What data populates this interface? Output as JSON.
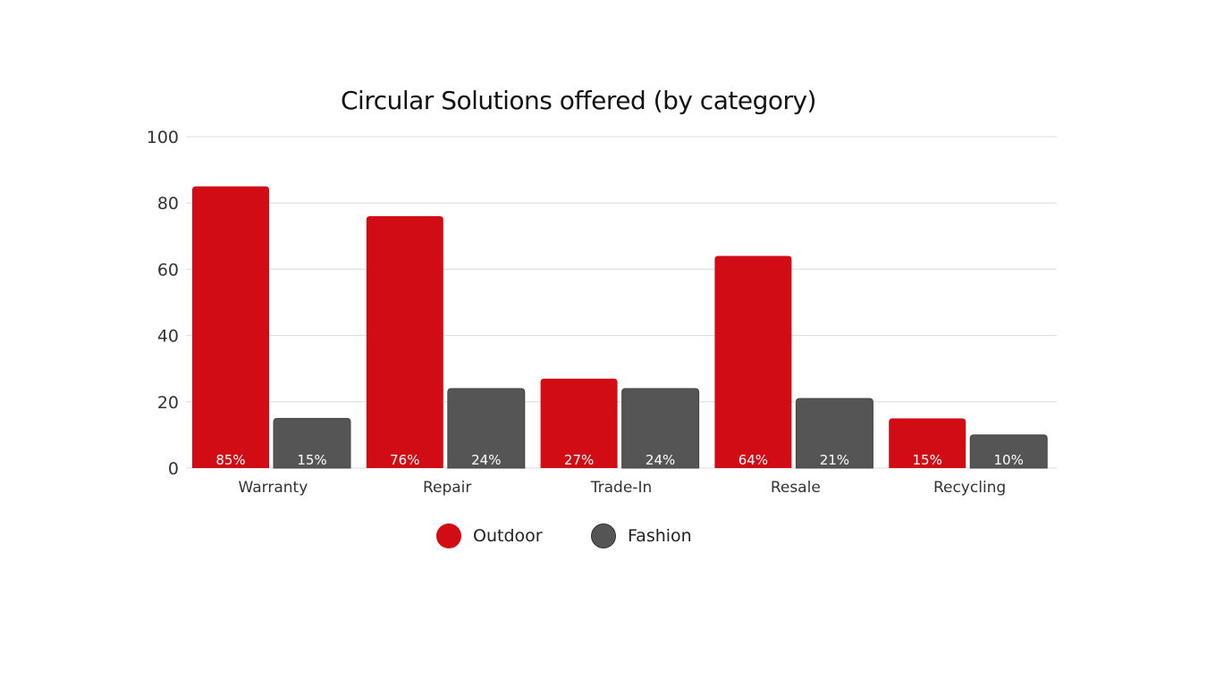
{
  "chart_data": {
    "type": "bar",
    "title": "Circular Solutions offered (by category)",
    "categories": [
      "Warranty",
      "Repair",
      "Trade-In",
      "Resale",
      "Recycling"
    ],
    "series": [
      {
        "name": "Outdoor",
        "color": "#d10c14",
        "values": [
          85,
          76,
          27,
          64,
          15
        ],
        "labels": [
          "85%",
          "76%",
          "27%",
          "64%",
          "15%"
        ]
      },
      {
        "name": "Fashion",
        "color": "#555555",
        "values": [
          15,
          24,
          24,
          21,
          10
        ],
        "labels": [
          "15%",
          "24%",
          "24%",
          "21%",
          "10%"
        ]
      }
    ],
    "ylim": [
      0,
      100
    ],
    "yticks": [
      "0",
      "20",
      "40",
      "60",
      "80",
      "100"
    ],
    "xlabel": "",
    "ylabel": "",
    "grid": true,
    "legend": "bottom"
  }
}
